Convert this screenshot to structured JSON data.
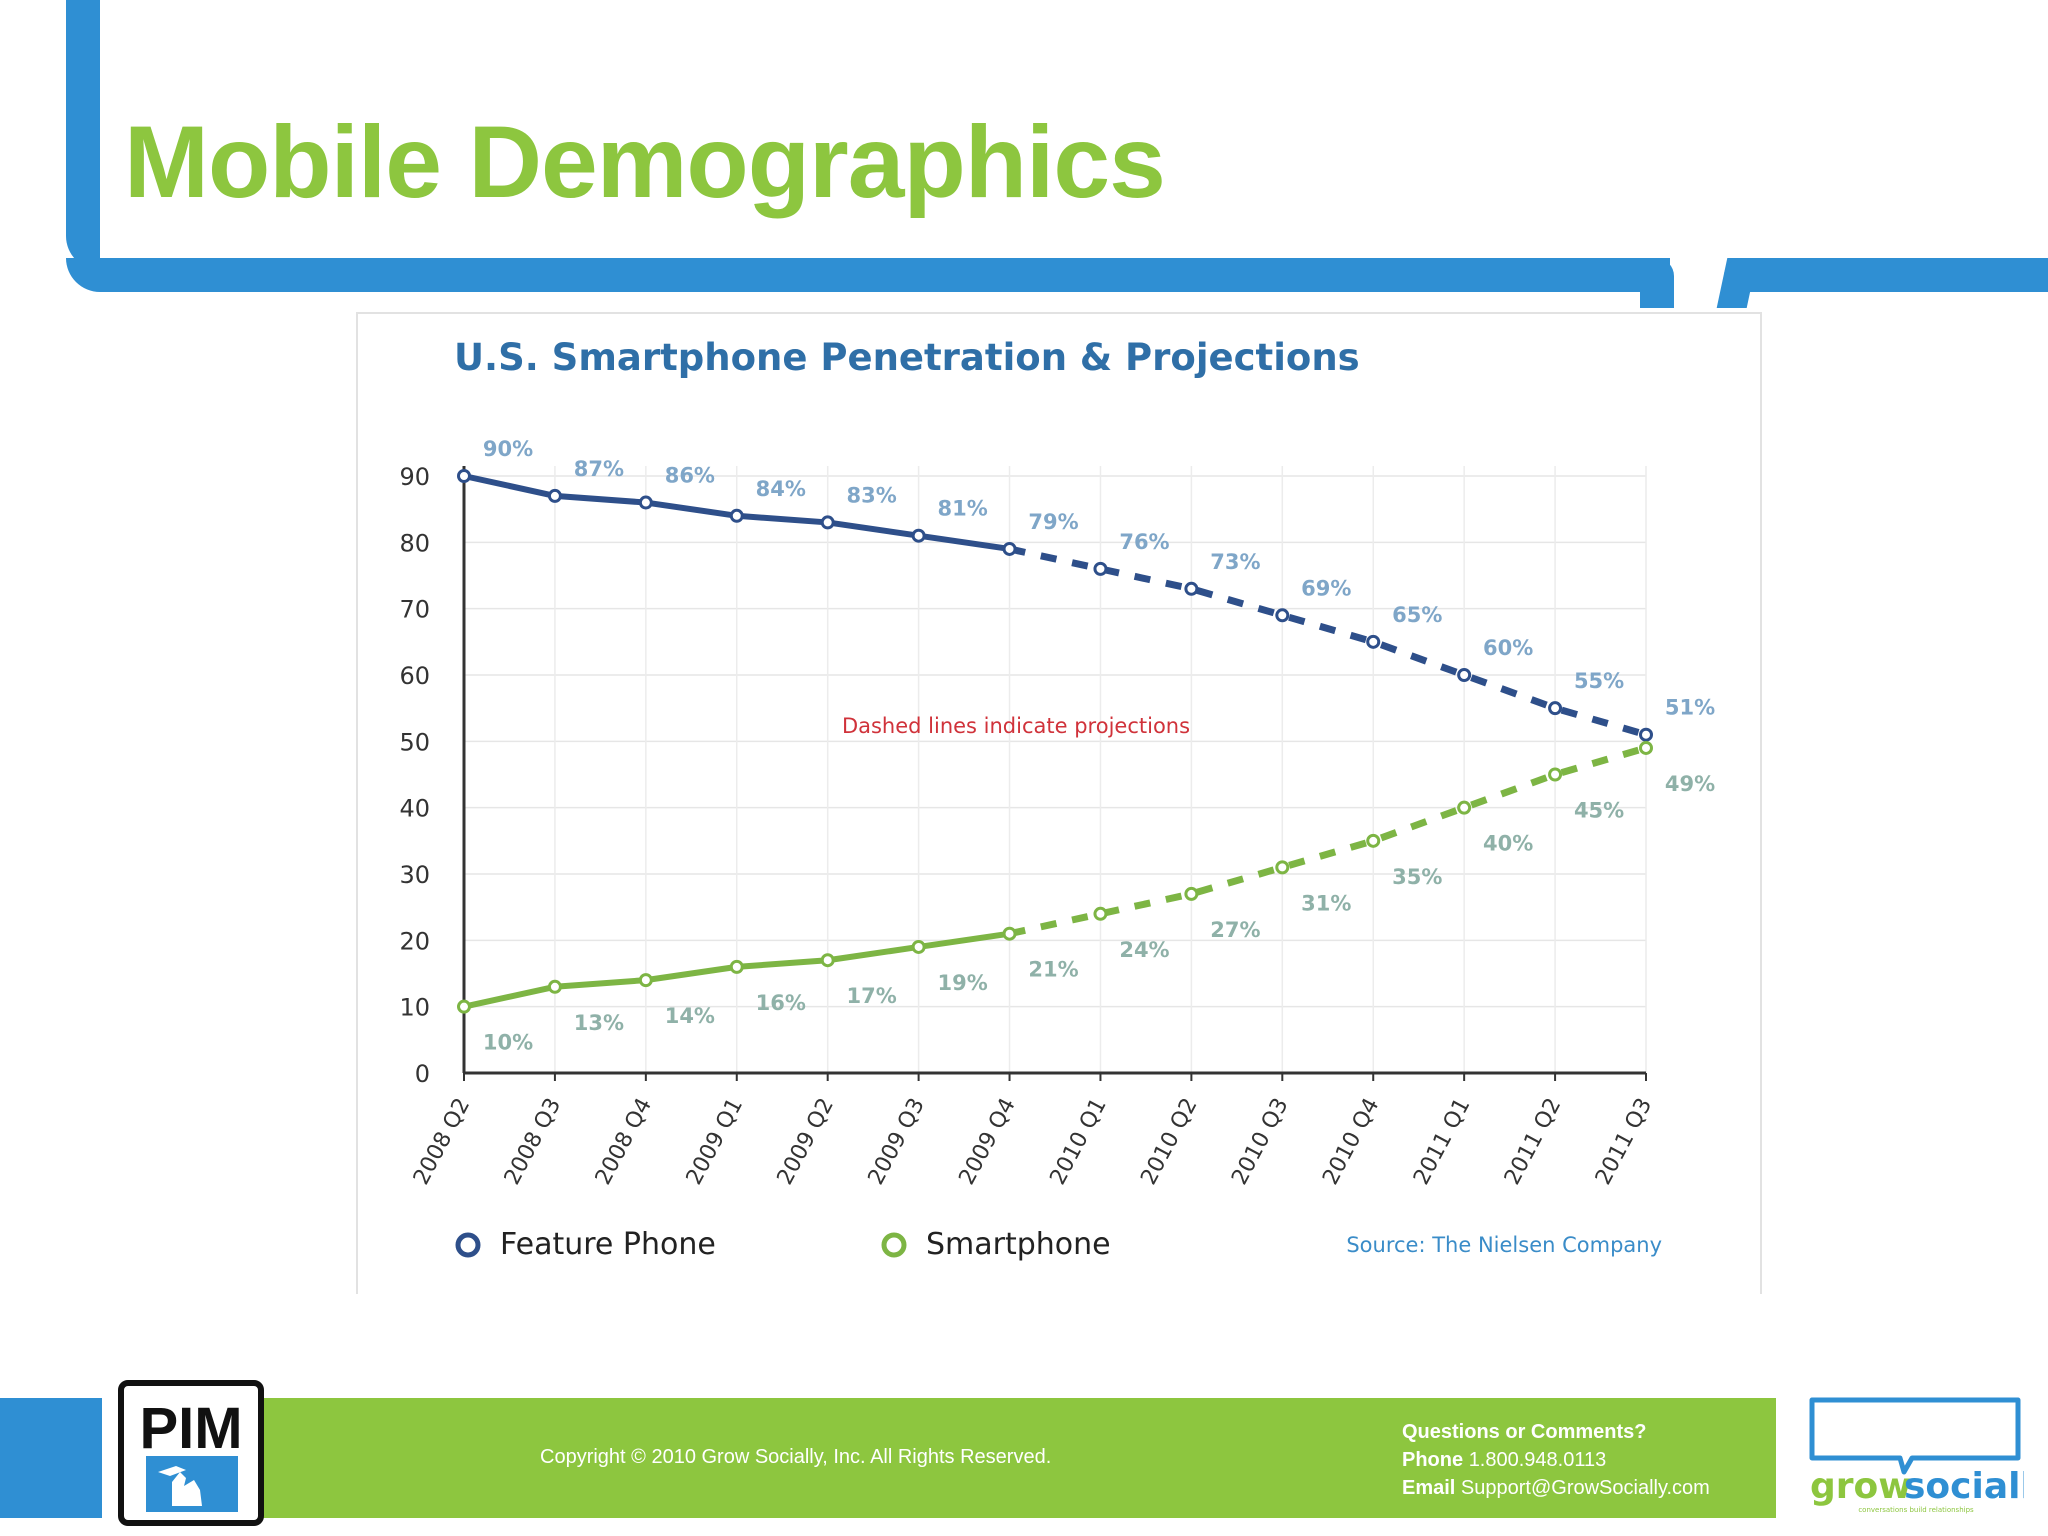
{
  "slide": {
    "title": "Mobile Demographics"
  },
  "chart_data": {
    "type": "line",
    "title": "U.S. Smartphone Penetration & Projections",
    "categories": [
      "2008 Q2",
      "2008 Q3",
      "2008 Q4",
      "2009 Q1",
      "2009 Q2",
      "2009 Q3",
      "2009 Q4",
      "2010 Q1",
      "2010 Q2",
      "2010 Q3",
      "2010 Q4",
      "2011 Q1",
      "2011 Q2",
      "2011 Q3"
    ],
    "y_ticks": [
      0,
      10,
      20,
      30,
      40,
      50,
      60,
      70,
      80,
      90
    ],
    "ylim": [
      0,
      90
    ],
    "projection_start_index": 6,
    "annotation": "Dashed lines indicate projections",
    "source": "Source: The Nielsen Company",
    "series": [
      {
        "name": "Feature Phone",
        "color": "#2e4f8a",
        "label_color": "#7fa6c8",
        "values": [
          90,
          87,
          86,
          84,
          83,
          81,
          79,
          76,
          73,
          69,
          65,
          60,
          55,
          51
        ],
        "labels": [
          "90%",
          "87%",
          "86%",
          "84%",
          "83%",
          "81%",
          "79%",
          "76%",
          "73%",
          "69%",
          "65%",
          "60%",
          "55%",
          "51%"
        ]
      },
      {
        "name": "Smartphone",
        "color": "#7db544",
        "label_color": "#8fb1a8",
        "values": [
          10,
          13,
          14,
          16,
          17,
          19,
          21,
          24,
          27,
          31,
          35,
          40,
          45,
          49
        ],
        "labels": [
          "10%",
          "13%",
          "14%",
          "16%",
          "17%",
          "19%",
          "21%",
          "24%",
          "27%",
          "31%",
          "35%",
          "40%",
          "45%",
          "49%"
        ]
      }
    ]
  },
  "footer": {
    "logo_text": "PIM",
    "copyright": "Copyright © 2010 Grow Socially, Inc. All Rights Reserved.",
    "contact_heading": "Questions or Comments?",
    "phone_label": "Phone",
    "phone": "1.800.948.0113",
    "email_label": "Email",
    "email": "Support@GrowSocially.com",
    "brand_word1": "grow",
    "brand_word2": "socially",
    "brand_tagline": "conversations build relationships"
  },
  "colors": {
    "frame_blue": "#2f8fd3",
    "brand_green": "#8dc63f",
    "chart_title": "#2f6fa7",
    "annotation_red": "#d0323a",
    "source_blue": "#3a8cc8"
  }
}
